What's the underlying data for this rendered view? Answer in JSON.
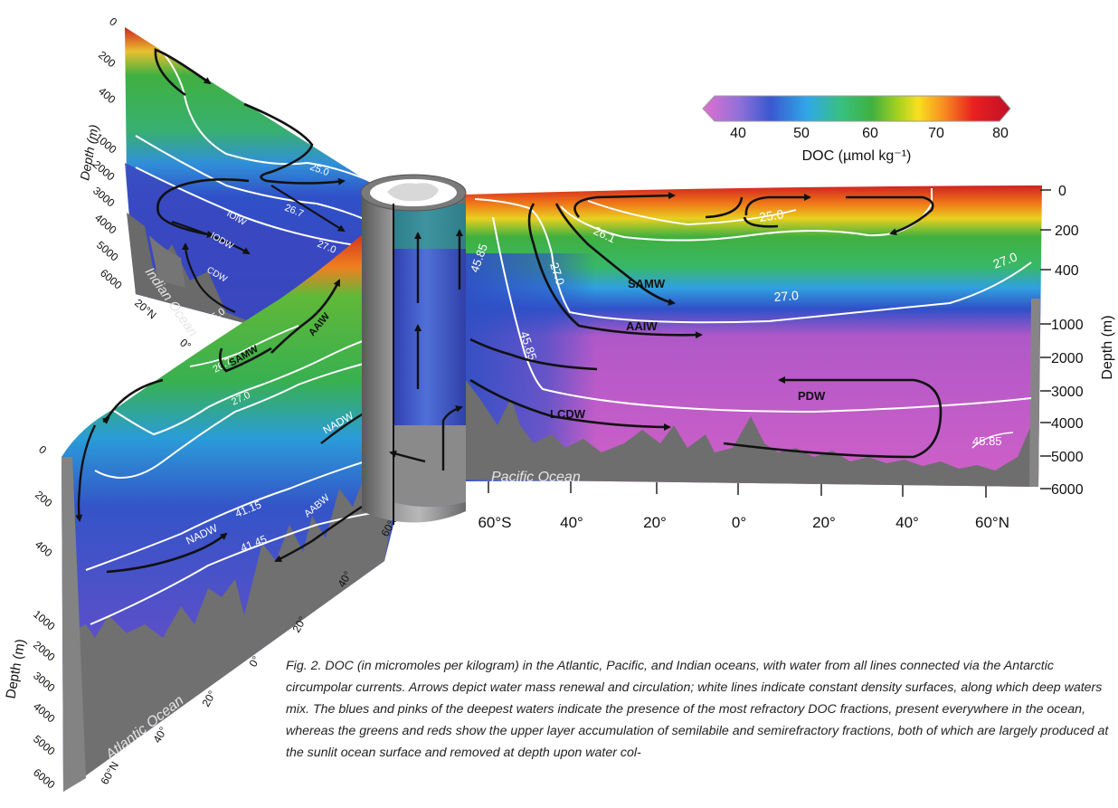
{
  "colorbar": {
    "ticks": [
      "40",
      "50",
      "60",
      "70",
      "80"
    ],
    "label": "DOC (µmol kg⁻¹)"
  },
  "pacific": {
    "ocean_label": "Pacific Ocean",
    "lat_ticks": [
      "60°S",
      "40°",
      "20°",
      "0°",
      "20°",
      "40°",
      "60°N"
    ],
    "depth_ticks": [
      "0",
      "200",
      "400",
      "1000",
      "2000",
      "3000",
      "4000",
      "5000",
      "6000"
    ],
    "depth_axis": "Depth (m)",
    "water_masses": [
      "SAMW",
      "AAIW",
      "PDW",
      "LCDW"
    ],
    "isopycnals": [
      "25.0",
      "26.1",
      "27.0",
      "27.0",
      "27.0",
      "45.85",
      "45.85",
      "45.85"
    ]
  },
  "indian": {
    "ocean_label": "Indian Ocean",
    "lat_ticks": [
      "20°N",
      "0°"
    ],
    "depth_ticks": [
      "0",
      "200",
      "400",
      "1000",
      "2000",
      "3000",
      "4000",
      "5000",
      "6000"
    ],
    "depth_axis": "Depth (m)",
    "water_masses": [
      "IOIW",
      "IODW",
      "CDW"
    ],
    "isopycnals": [
      "25.0",
      "26.7",
      "27.0"
    ]
  },
  "atlantic": {
    "ocean_label": "Atlantic Ocean",
    "lat_ticks": [
      "60°S",
      "40°",
      "20°",
      "0°",
      "20°",
      "40°",
      "60°N"
    ],
    "depth_ticks": [
      "0",
      "200",
      "400",
      "1000",
      "2000",
      "3000",
      "4000",
      "5000",
      "6000"
    ],
    "depth_axis": "Depth (m)",
    "water_masses": [
      "SAMW",
      "AAIW",
      "NADW",
      "AABW",
      "NADW"
    ],
    "isopycnals": [
      "25.0",
      "26.7",
      "27.0",
      "41.15",
      "41.45"
    ]
  },
  "caption": "Fig. 2. DOC (in micromoles per kilogram) in the Atlantic, Pacific, and Indian oceans, with water from all lines connected via the Antarctic circumpolar currents. Arrows depict water mass renewal and circulation; white lines indicate constant density surfaces, along which deep waters mix. The blues and pinks of the deepest waters indicate the presence of the most refractory DOC fractions, present everywhere in the ocean, whereas the greens and reds show the upper layer accumulation of semilabile and semirefractory fractions, both of which are largely produced at the sunlit ocean surface and removed at depth upon water col-"
}
